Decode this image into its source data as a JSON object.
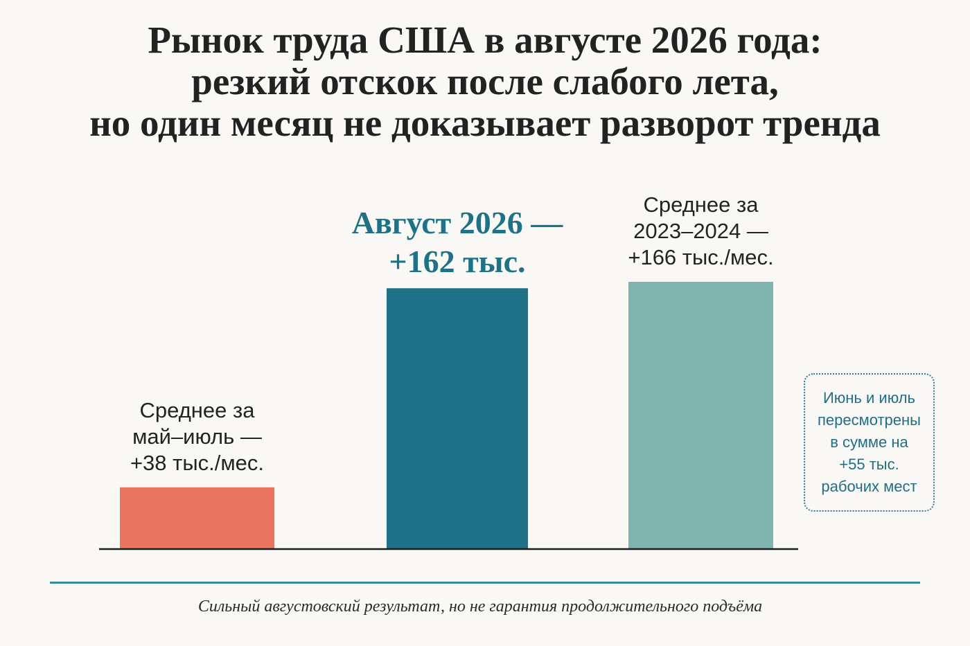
{
  "header": {
    "title_lines": [
      "Рынок труда США в августе 2026 года:",
      "резкий отскок после слабого лета,",
      "но один месяц не доказывает разворот тренда"
    ]
  },
  "chart_data": {
    "type": "bar",
    "title": "Рынок труда США в августе 2026 года: резкий отскок после слабого лета, но один месяц не доказывает разворот тренда",
    "categories": [
      "Среднее за май–июль",
      "Август 2026",
      "Среднее за 2023–2024"
    ],
    "values": [
      38,
      162,
      166
    ],
    "unit": "тыс.",
    "colors": [
      "#e8735e",
      "#1e7086",
      "#7fb5ae"
    ],
    "labels": [
      {
        "lines": [
          "Среднее за",
          "май–июль —",
          "+38 тыс./мес."
        ],
        "style": "normal"
      },
      {
        "lines": [
          "Август 2026 —",
          "+162 тыс."
        ],
        "style": "highlight"
      },
      {
        "lines": [
          "Среднее за",
          "2023–2024 —",
          "+166 тыс./мес."
        ],
        "style": "normal"
      }
    ],
    "ylim": [
      0,
      166
    ],
    "grid": false,
    "xlabel": "",
    "ylabel": ""
  },
  "note": {
    "lines": [
      "Июнь и июль",
      "пересмотрены",
      "в сумме на",
      "+55 тыс.",
      "рабочих мест"
    ]
  },
  "footer": {
    "caption": "Сильный августовский результат, но не гарантия продолжительного подъёма"
  }
}
